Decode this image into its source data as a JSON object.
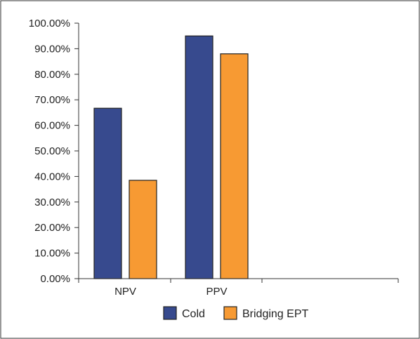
{
  "chart_data": {
    "type": "bar",
    "categories": [
      "NPV",
      "PPV"
    ],
    "series": [
      {
        "name": "Cold",
        "values": [
          0.667,
          0.95
        ],
        "color": "#374a8e"
      },
      {
        "name": "Bridging EPT",
        "values": [
          0.385,
          0.88
        ],
        "color": "#f79a33"
      }
    ],
    "ylim": [
      0,
      1
    ],
    "yticks": [
      0,
      0.1,
      0.2,
      0.3,
      0.4,
      0.5,
      0.6,
      0.7,
      0.8,
      0.9,
      1.0
    ],
    "ytick_labels": [
      "0.00%",
      "10.00%",
      "20.00%",
      "30.00%",
      "40.00%",
      "50.00%",
      "60.00%",
      "70.00%",
      "80.00%",
      "90.00%",
      "100.00%"
    ],
    "legend_position": "bottom-center",
    "grid": false
  }
}
